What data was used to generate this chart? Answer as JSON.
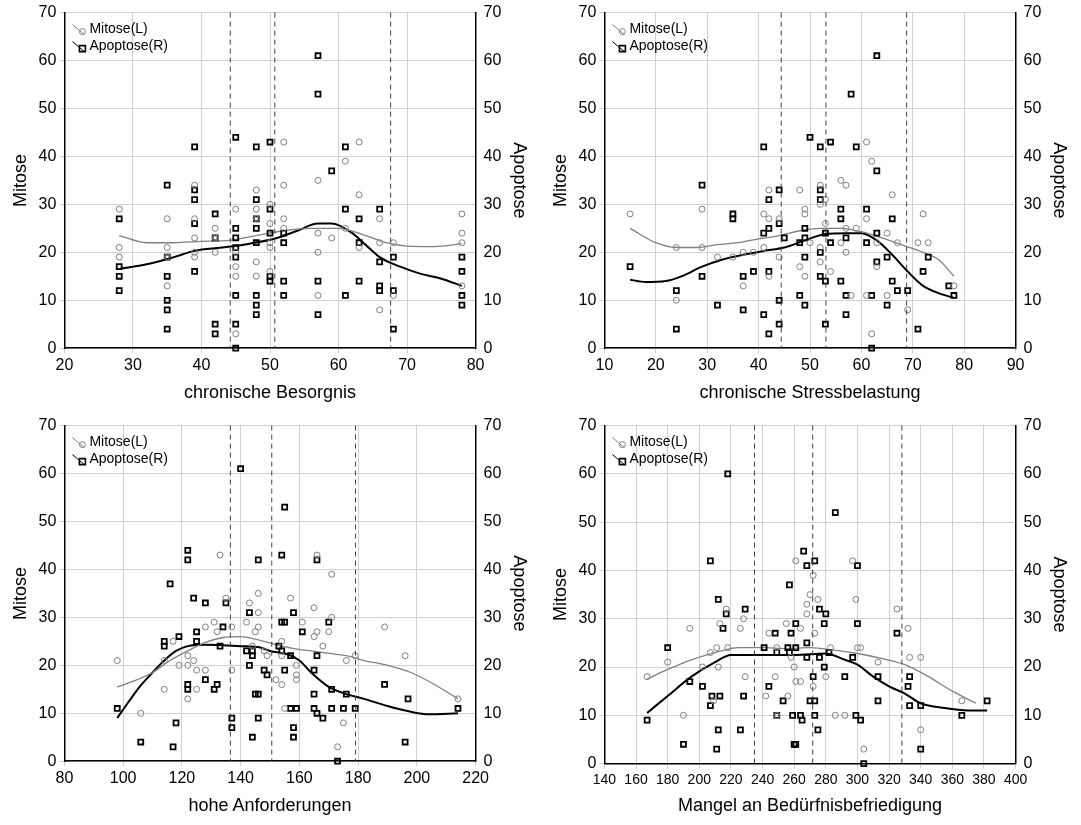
{
  "chart_data": [
    {
      "type": "scatter",
      "xlabel": "chronische Besorgnis",
      "ylabel": "Mitose",
      "y2label": "Apoptose",
      "xlim": [
        20,
        80
      ],
      "xticks": [
        20,
        30,
        40,
        50,
        60,
        70,
        80
      ],
      "ylim": [
        0,
        70
      ],
      "yticks": [
        0,
        10,
        20,
        30,
        40,
        50,
        60,
        70
      ],
      "y2lim": [
        0,
        70
      ],
      "y2ticks": [
        0,
        10,
        20,
        30,
        40,
        50,
        60,
        70
      ],
      "grid": true,
      "legend": "top left",
      "ref_lines": [
        {
          "axis": "x",
          "value": 44.2,
          "line_style": "dashed",
          "color": "#404040"
        },
        {
          "axis": "x",
          "value": 50.7,
          "line_style": "dashed",
          "color": "#404040"
        },
        {
          "axis": "x",
          "value": 67.6,
          "line_style": "dashed",
          "color": "#404040"
        }
      ],
      "series": [
        {
          "name": "Mitose(L)",
          "type": "scatter",
          "marker": "circle",
          "color": "#808080",
          "x": [
            28,
            28,
            28,
            35,
            35,
            35,
            35,
            39,
            39,
            39,
            39,
            39,
            42,
            42,
            42,
            45,
            45,
            45,
            45,
            45,
            48,
            48,
            48,
            48,
            48,
            50,
            50,
            50,
            50,
            50,
            52,
            52,
            52,
            52,
            57,
            57,
            57,
            57,
            59,
            61,
            61,
            63,
            63,
            63,
            66,
            66,
            66,
            68,
            68,
            78,
            78,
            78,
            78
          ],
          "values": [
            29,
            21,
            19,
            27,
            21,
            19,
            13,
            34,
            27,
            23,
            20,
            19,
            25,
            23,
            20,
            29,
            20,
            17,
            15,
            3,
            33,
            29,
            27,
            18,
            15,
            30,
            26,
            22,
            21,
            16,
            43,
            34,
            27,
            25,
            35,
            24,
            20,
            11,
            23,
            39,
            25,
            43,
            32,
            21,
            27,
            22,
            8,
            22,
            11,
            28,
            24,
            22,
            13
          ]
        },
        {
          "name": "Apoptose(R)",
          "type": "scatter",
          "marker": "square",
          "color": "#000000",
          "x": [
            28,
            28,
            28,
            28,
            35,
            35,
            35,
            35,
            35,
            35,
            39,
            39,
            39,
            39,
            39,
            42,
            42,
            42,
            42,
            45,
            45,
            45,
            45,
            45,
            45,
            45,
            45,
            48,
            48,
            48,
            48,
            48,
            48,
            48,
            48,
            50,
            50,
            50,
            50,
            50,
            52,
            52,
            52,
            52,
            57,
            57,
            57,
            57,
            59,
            61,
            61,
            61,
            63,
            63,
            63,
            66,
            66,
            66,
            66,
            68,
            68,
            68,
            78,
            78,
            78,
            78
          ],
          "values": [
            27,
            17,
            15,
            12,
            34,
            19,
            15,
            10,
            8,
            4,
            42,
            33,
            31,
            26,
            16,
            28,
            23,
            5,
            3,
            44,
            25,
            23,
            21,
            19,
            11,
            5,
            0,
            42,
            31,
            27,
            25,
            22,
            11,
            9,
            7,
            43,
            29,
            24,
            15,
            14,
            24,
            22,
            14,
            11,
            61,
            53,
            14,
            7,
            37,
            42,
            29,
            11,
            27,
            22,
            14,
            29,
            18,
            13,
            12,
            19,
            12,
            4,
            19,
            16,
            11,
            9
          ]
        },
        {
          "type": "line",
          "marker": "none",
          "color": "#808080",
          "x": [
            28,
            32,
            36,
            40,
            44,
            48,
            52,
            56,
            60,
            64,
            67,
            70,
            74,
            78
          ],
          "values": [
            23.5,
            22,
            22,
            22.3,
            22.5,
            23.5,
            24.5,
            25,
            25,
            23.5,
            22,
            21.3,
            21.2,
            21.8
          ]
        },
        {
          "type": "line",
          "marker": "none",
          "color": "#000000",
          "x": [
            28,
            32,
            36,
            39,
            43,
            47,
            51,
            54,
            57,
            59,
            62,
            64,
            66,
            69,
            72,
            75,
            78
          ],
          "values": [
            16.5,
            17.5,
            19,
            20.3,
            21,
            21.8,
            23,
            24.5,
            26,
            26,
            24,
            21.5,
            19,
            17,
            15.5,
            14.5,
            13
          ]
        }
      ]
    },
    {
      "type": "scatter",
      "xlabel": "chronische Stressbelastung",
      "ylabel": "Mitose",
      "y2label": "Apoptose",
      "xlim": [
        10,
        90
      ],
      "xticks": [
        10,
        20,
        30,
        40,
        50,
        60,
        70,
        80,
        90
      ],
      "ylim": [
        0,
        70
      ],
      "yticks": [
        0,
        10,
        20,
        30,
        40,
        50,
        60,
        70
      ],
      "y2lim": [
        0,
        70
      ],
      "y2ticks": [
        0,
        10,
        20,
        30,
        40,
        50,
        60,
        70
      ],
      "grid": true,
      "legend": "top left",
      "ref_lines": [
        {
          "axis": "x",
          "value": 44.4,
          "line_style": "dashed",
          "color": "#404040"
        },
        {
          "axis": "x",
          "value": 53.1,
          "line_style": "dashed",
          "color": "#404040"
        },
        {
          "axis": "x",
          "value": 68.8,
          "line_style": "dashed",
          "color": "#404040"
        }
      ],
      "series": [
        {
          "name": "Mitose(L)",
          "type": "scatter",
          "marker": "circle",
          "color": "#808080",
          "x": [
            15,
            24,
            24,
            29,
            29,
            32,
            35,
            37,
            37,
            39,
            41,
            41,
            42,
            42,
            42,
            44,
            44,
            48,
            48,
            49,
            49,
            49,
            50,
            52,
            52,
            52,
            52,
            53,
            53,
            54,
            56,
            57,
            57,
            56,
            57,
            59,
            58,
            61,
            62,
            61,
            61,
            62,
            63,
            63,
            65,
            65,
            66,
            67,
            69,
            71,
            72,
            73,
            78
          ],
          "values": [
            28,
            21,
            10,
            29,
            21,
            19,
            19,
            13,
            20,
            20,
            28,
            21,
            33,
            27,
            15,
            27,
            19,
            33,
            17,
            29,
            28,
            15,
            22,
            34,
            30,
            18,
            21,
            26,
            31,
            16,
            35,
            34,
            20,
            22,
            25,
            25,
            11,
            43,
            39,
            27,
            11,
            3,
            17,
            22,
            24,
            11,
            32,
            22,
            8,
            22,
            28,
            22,
            13
          ]
        },
        {
          "name": "Apoptose(R)",
          "type": "scatter",
          "marker": "square",
          "color": "#000000",
          "x": [
            15,
            24,
            24,
            29,
            29,
            32,
            35,
            35,
            37,
            37,
            39,
            41,
            41,
            41,
            42,
            42,
            42,
            42,
            44,
            44,
            44,
            44,
            45,
            48,
            48,
            49,
            49,
            49,
            49,
            50,
            52,
            52,
            52,
            52,
            52,
            53,
            53,
            53,
            54,
            54,
            56,
            56,
            56,
            57,
            57,
            57,
            58,
            59,
            61,
            61,
            62,
            62,
            63,
            63,
            63,
            63,
            65,
            65,
            66,
            66,
            67,
            69,
            71,
            72,
            73,
            77,
            78
          ],
          "values": [
            17,
            12,
            4,
            34,
            15,
            9,
            28,
            27,
            15,
            8,
            16,
            42,
            24,
            7,
            31,
            25,
            16,
            3,
            33,
            26,
            10,
            5,
            23,
            22,
            11,
            25,
            23,
            19,
            9,
            44,
            42,
            33,
            31,
            20,
            15,
            24,
            14,
            5,
            43,
            22,
            29,
            27,
            14,
            23,
            11,
            7,
            53,
            42,
            29,
            22,
            11,
            0,
            61,
            37,
            24,
            18,
            19,
            9,
            27,
            14,
            12,
            12,
            4,
            16,
            19,
            13,
            11
          ]
        },
        {
          "type": "line",
          "marker": "none",
          "color": "#808080",
          "x": [
            15,
            20,
            24,
            28,
            32,
            36,
            40,
            44,
            48,
            52,
            56,
            60,
            64,
            68,
            72,
            75,
            78
          ],
          "values": [
            25,
            22,
            21,
            21,
            21.6,
            22,
            22.8,
            23.5,
            24.5,
            25,
            25,
            24.3,
            23,
            21.5,
            20,
            18.5,
            15
          ]
        },
        {
          "type": "line",
          "marker": "none",
          "color": "#000000",
          "x": [
            15,
            18,
            22,
            25,
            29,
            33,
            37,
            41,
            45,
            49,
            53,
            57,
            60,
            63,
            66,
            69,
            72,
            75,
            78
          ],
          "values": [
            14.3,
            13.8,
            14,
            15,
            17,
            18.5,
            19.5,
            20.3,
            21,
            22.5,
            23.8,
            24,
            24,
            22.5,
            19.5,
            16,
            13,
            11.5,
            10.5
          ]
        }
      ]
    },
    {
      "type": "scatter",
      "xlabel": "hohe Anforderungen",
      "ylabel": "Mitose",
      "y2label": "Apoptose",
      "xlim": [
        80,
        220
      ],
      "xticks": [
        80,
        100,
        120,
        140,
        160,
        180,
        200,
        220
      ],
      "ylim": [
        0,
        70
      ],
      "yticks": [
        0,
        10,
        20,
        30,
        40,
        50,
        60,
        70
      ],
      "y2lim": [
        0,
        70
      ],
      "y2ticks": [
        0,
        10,
        20,
        30,
        40,
        50,
        60,
        70
      ],
      "grid": true,
      "legend": "top left",
      "ref_lines": [
        {
          "axis": "x",
          "value": 136.5,
          "line_style": "dashed",
          "color": "#404040"
        },
        {
          "axis": "x",
          "value": 150.6,
          "line_style": "dashed",
          "color": "#404040"
        },
        {
          "axis": "x",
          "value": 179.1,
          "line_style": "dashed",
          "color": "#404040"
        }
      ],
      "series": [
        {
          "name": "Mitose(L)",
          "type": "scatter",
          "marker": "circle",
          "color": "#808080",
          "x": [
            98,
            106,
            114,
            114,
            117,
            119,
            122,
            122,
            122,
            124,
            125,
            125,
            128,
            128,
            131,
            132,
            133,
            135,
            137,
            137,
            142,
            143,
            144,
            145,
            146,
            146,
            146,
            148,
            149,
            152,
            154,
            154,
            154,
            155,
            157,
            159,
            159,
            159,
            161,
            165,
            165,
            166,
            166,
            168,
            170,
            171,
            171,
            173,
            175,
            176,
            179,
            189,
            196,
            214
          ],
          "values": [
            21,
            10,
            21,
            15,
            25,
            20,
            22,
            20,
            13,
            21,
            19,
            15,
            28,
            19,
            29,
            27,
            43,
            34,
            28,
            19,
            29,
            33,
            24,
            27,
            28,
            31,
            35,
            23,
            22,
            17,
            16,
            25,
            22,
            11,
            34,
            20,
            18,
            17,
            29,
            32,
            26,
            27,
            43,
            24,
            27,
            30,
            39,
            3,
            8,
            21,
            22,
            28,
            22,
            13
          ]
        },
        {
          "name": "Apoptose(R)",
          "type": "scatter",
          "marker": "square",
          "color": "#000000",
          "x": [
            98,
            106,
            114,
            114,
            116,
            117,
            118,
            119,
            122,
            122,
            122,
            122,
            124,
            125,
            125,
            128,
            128,
            131,
            132,
            133,
            134,
            135,
            137,
            137,
            140,
            142,
            143,
            143,
            144,
            144,
            144,
            145,
            146,
            146,
            146,
            148,
            149,
            153,
            154,
            154,
            154,
            155,
            155,
            155,
            157,
            157,
            158,
            158,
            158,
            159,
            161,
            165,
            165,
            165,
            166,
            166,
            166,
            168,
            170,
            171,
            171,
            173,
            175,
            176,
            179,
            189,
            196,
            197,
            214
          ],
          "values": [
            11,
            4,
            25,
            24,
            37,
            3,
            8,
            26,
            44,
            42,
            16,
            15,
            34,
            27,
            25,
            17,
            33,
            15,
            16,
            24,
            28,
            33,
            9,
            7,
            61,
            23,
            31,
            20,
            23,
            22,
            5,
            14,
            14,
            42,
            9,
            19,
            18,
            24,
            43,
            29,
            23,
            53,
            29,
            19,
            22,
            11,
            31,
            7,
            5,
            11,
            27,
            14,
            11,
            19,
            10,
            42,
            22,
            9,
            29,
            15,
            11,
            0,
            11,
            14,
            11,
            16,
            4,
            13,
            11
          ]
        },
        {
          "type": "line",
          "marker": "none",
          "color": "#808080",
          "x": [
            98,
            104,
            110,
            116,
            122,
            128,
            134,
            140,
            146,
            152,
            158,
            164,
            170,
            176,
            182,
            190,
            198,
            206,
            214
          ],
          "values": [
            15.5,
            16.8,
            18.5,
            21,
            23,
            24.8,
            25.8,
            26,
            25.3,
            24.3,
            23.5,
            23,
            22.5,
            22,
            21,
            20,
            18.5,
            16,
            13
          ]
        },
        {
          "type": "line",
          "marker": "none",
          "color": "#000000",
          "x": [
            98,
            102,
            106,
            110,
            114,
            118,
            122,
            128,
            134,
            140,
            146,
            150,
            156,
            160,
            164,
            170,
            176,
            182,
            190,
            198,
            204,
            214
          ],
          "values": [
            9,
            12.5,
            15.8,
            18.5,
            21,
            23,
            24,
            24.3,
            24.2,
            24,
            23.8,
            23,
            22.3,
            21,
            18.5,
            15.5,
            14,
            13,
            11.5,
            10.3,
            9.8,
            10
          ]
        }
      ]
    },
    {
      "type": "scatter",
      "xlabel": "Mangel an Bedürfnisbefriedigung",
      "ylabel": "Mitose",
      "y2label": "Apoptose",
      "xlim": [
        140,
        400
      ],
      "xticks": [
        140,
        160,
        180,
        200,
        220,
        240,
        260,
        280,
        300,
        320,
        340,
        360,
        380,
        400
      ],
      "ylim": [
        0,
        70
      ],
      "yticks": [
        0,
        10,
        20,
        30,
        40,
        50,
        60,
        70
      ],
      "y2lim": [
        0,
        70
      ],
      "y2ticks": [
        0,
        10,
        20,
        30,
        40,
        50,
        60,
        70
      ],
      "grid": true,
      "legend": "top left",
      "ref_lines": [
        {
          "axis": "x",
          "value": 234.9,
          "line_style": "dashed",
          "color": "#404040"
        },
        {
          "axis": "x",
          "value": 271.7,
          "line_style": "dashed",
          "color": "#404040"
        },
        {
          "axis": "x",
          "value": 328.1,
          "line_style": "dashed",
          "color": "#404040"
        }
      ],
      "series": [
        {
          "name": "Mitose(L)",
          "type": "scatter",
          "marker": "circle",
          "color": "#808080",
          "x": [
            167,
            180,
            190,
            194,
            202,
            207,
            209,
            211,
            212,
            213,
            217,
            218,
            226,
            228,
            229,
            242,
            244,
            248,
            249,
            249,
            256,
            255,
            258,
            260,
            261,
            261,
            264,
            264,
            268,
            270,
            268,
            272,
            272,
            273,
            275,
            280,
            283,
            286,
            292,
            297,
            299,
            300,
            302,
            304,
            313,
            325,
            332,
            333,
            340,
            340,
            366
          ],
          "values": [
            18,
            21,
            10,
            28,
            20,
            23,
            13,
            24,
            20,
            29,
            32,
            24,
            28,
            30,
            18,
            14,
            27,
            18,
            10,
            24,
            14,
            29,
            22,
            20,
            42,
            17,
            17,
            28,
            31,
            35,
            33,
            39,
            16,
            27,
            34,
            18,
            24,
            10,
            10,
            42,
            34,
            24,
            24,
            3,
            21,
            32,
            28,
            22,
            22,
            7,
            13
          ]
        },
        {
          "name": "Apoptose(R)",
          "type": "scatter",
          "marker": "square",
          "color": "#000000",
          "x": [
            167,
            180,
            190,
            194,
            202,
            207,
            207,
            208,
            213,
            212,
            212,
            211,
            215,
            217,
            218,
            226,
            228,
            229,
            241,
            244,
            248,
            249,
            249,
            253,
            256,
            257,
            257,
            258,
            259,
            260,
            261,
            261,
            261,
            264,
            265,
            266,
            268,
            268,
            268,
            270,
            272,
            273,
            273,
            273,
            275,
            276,
            276,
            279,
            279,
            280,
            282,
            286,
            292,
            297,
            299,
            300,
            300,
            302,
            304,
            313,
            313,
            325,
            332,
            333,
            333,
            340,
            340,
            366,
            382
          ],
          "values": [
            9,
            24,
            4,
            17,
            16,
            42,
            12,
            14,
            14,
            34,
            7,
            3,
            28,
            31,
            60,
            7,
            14,
            32,
            24,
            16,
            27,
            23,
            10,
            13,
            24,
            23,
            37,
            27,
            10,
            4,
            4,
            29,
            24,
            10,
            9,
            44,
            41,
            25,
            22,
            13,
            18,
            42,
            13,
            10,
            7,
            32,
            22,
            20,
            29,
            31,
            23,
            52,
            18,
            22,
            10,
            41,
            29,
            9,
            0,
            18,
            13,
            27,
            16,
            18,
            12,
            12,
            3,
            10,
            13
          ]
        },
        {
          "type": "line",
          "marker": "none",
          "color": "#808080",
          "x": [
            167,
            180,
            195,
            210,
            225,
            240,
            255,
            270,
            285,
            300,
            315,
            330,
            345,
            360,
            375
          ],
          "values": [
            17.5,
            19.5,
            21.5,
            23,
            24,
            24,
            23.8,
            24,
            23.5,
            22.8,
            21.8,
            20.5,
            18,
            15,
            12.5
          ]
        },
        {
          "type": "line",
          "marker": "none",
          "color": "#000000",
          "x": [
            167,
            180,
            195,
            210,
            220,
            240,
            260,
            280,
            292,
            300,
            310,
            320,
            330,
            340,
            355,
            370,
            382
          ],
          "values": [
            10.5,
            14,
            18,
            21,
            22.5,
            22.5,
            22.5,
            22.8,
            21.5,
            20.5,
            18,
            16,
            14.5,
            12.5,
            11.5,
            11,
            11
          ]
        }
      ]
    }
  ]
}
